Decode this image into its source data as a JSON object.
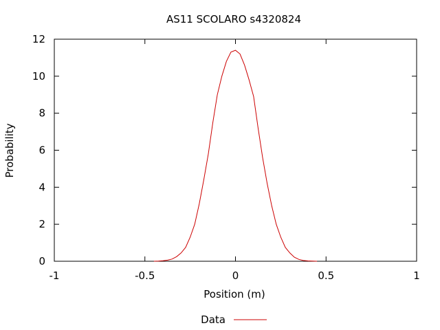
{
  "chart_data": {
    "type": "line",
    "title": "AS11 SCOLARO s4320824",
    "xlabel": "Position (m)",
    "ylabel": "Probability",
    "xlim": [
      -1,
      1
    ],
    "ylim": [
      0,
      12
    ],
    "xticks": [
      "-1",
      "-0.5",
      "0",
      "0.5",
      "1"
    ],
    "yticks": [
      "0",
      "2",
      "4",
      "6",
      "8",
      "10",
      "12"
    ],
    "grid": false,
    "legend_position": "bottom-center",
    "series": [
      {
        "name": "Data",
        "color": "#cc0000",
        "x": [
          -0.45,
          -0.425,
          -0.4,
          -0.375,
          -0.35,
          -0.325,
          -0.3,
          -0.275,
          -0.25,
          -0.225,
          -0.2,
          -0.175,
          -0.15,
          -0.125,
          -0.1,
          -0.075,
          -0.05,
          -0.025,
          0,
          0.025,
          0.05,
          0.075,
          0.1,
          0.125,
          0.15,
          0.175,
          0.2,
          0.225,
          0.25,
          0.275,
          0.3,
          0.325,
          0.35,
          0.375,
          0.4,
          0.425,
          0.45
        ],
        "y": [
          0.0,
          0.01,
          0.03,
          0.06,
          0.12,
          0.25,
          0.45,
          0.75,
          1.3,
          2.0,
          3.1,
          4.4,
          5.8,
          7.5,
          9.0,
          10.0,
          10.8,
          11.3,
          11.4,
          11.2,
          10.6,
          9.8,
          8.9,
          7.2,
          5.6,
          4.2,
          3.0,
          2.0,
          1.3,
          0.75,
          0.45,
          0.22,
          0.1,
          0.04,
          0.02,
          0.01,
          0.0
        ]
      }
    ]
  }
}
